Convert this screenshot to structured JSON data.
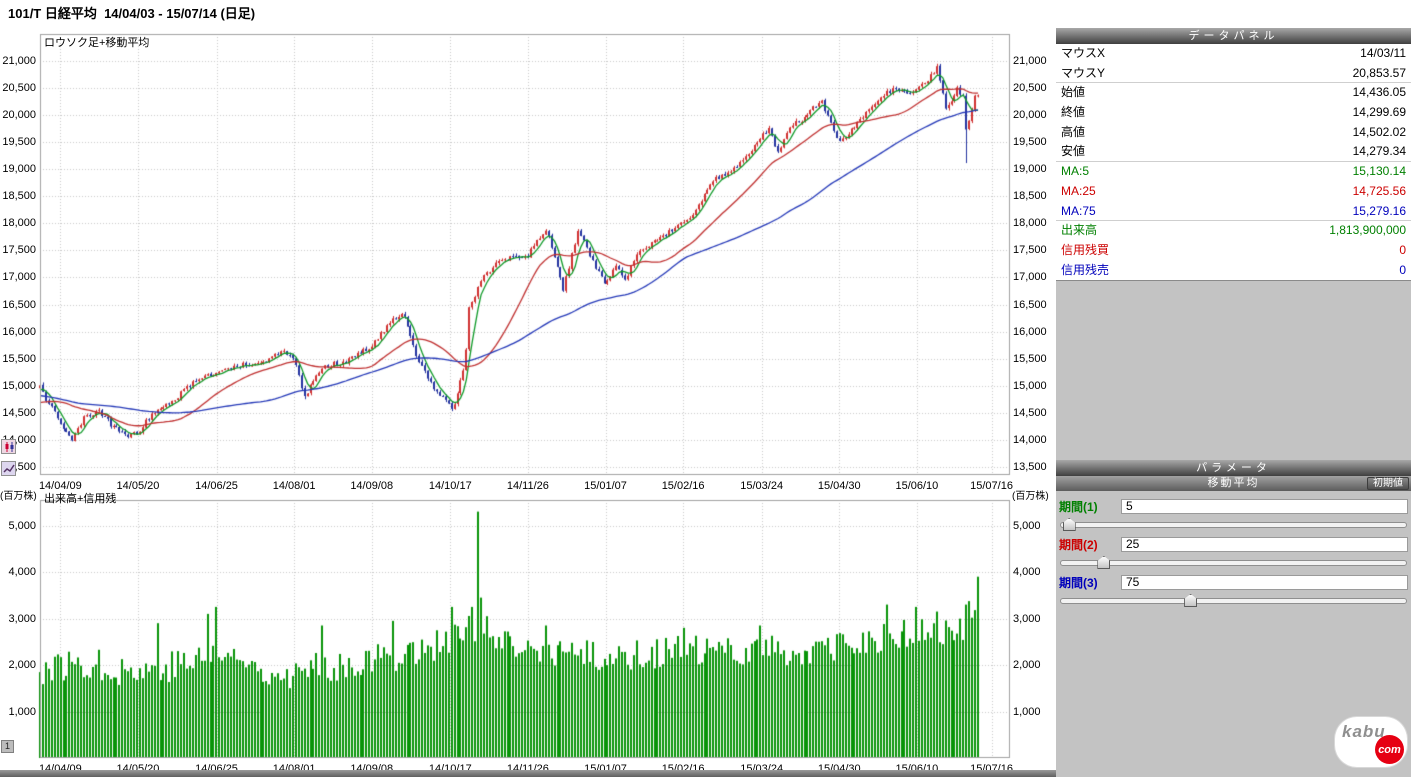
{
  "title": "101/T 日経平均  14/04/03 - 15/07/14 (日足)",
  "page_indicator": "1",
  "chart_labels": {
    "main": "ロウソク足+移動平均",
    "volume": "出来高+信用残",
    "volume_unit": "(百万株)"
  },
  "data_panel": {
    "title": "データパネル",
    "palette": {
      "black": "#000000",
      "green": "#008000",
      "red": "#cc0000",
      "blue": "#0000bb"
    },
    "rows": [
      {
        "label": "マウスX",
        "value": "14/03/11",
        "color": "black"
      },
      {
        "label": "マウスY",
        "value": "20,853.57",
        "color": "black",
        "sep": true
      },
      {
        "label": "始値",
        "value": "14,436.05",
        "color": "black"
      },
      {
        "label": "終値",
        "value": "14,299.69",
        "color": "black"
      },
      {
        "label": "高値",
        "value": "14,502.02",
        "color": "black"
      },
      {
        "label": "安値",
        "value": "14,279.34",
        "color": "black",
        "sep": true
      },
      {
        "label": "MA:5",
        "value": "15,130.14",
        "color": "green"
      },
      {
        "label": "MA:25",
        "value": "14,725.56",
        "color": "red"
      },
      {
        "label": "MA:75",
        "value": "15,279.16",
        "color": "blue",
        "sep": true
      },
      {
        "label": "出来高",
        "value": "1,813,900,000",
        "color": "green"
      },
      {
        "label": "信用残買",
        "value": "0",
        "color": "red"
      },
      {
        "label": "信用残売",
        "value": "0",
        "color": "blue"
      }
    ]
  },
  "parameters": {
    "title": "パラメータ",
    "group_title": "移動平均",
    "reset_button": "初期値",
    "sliders": [
      {
        "label": "期間(1)",
        "value": 5,
        "max": 200,
        "color": "green"
      },
      {
        "label": "期間(2)",
        "value": 25,
        "max": 200,
        "color": "red"
      },
      {
        "label": "期間(3)",
        "value": 75,
        "max": 200,
        "color": "blue"
      }
    ]
  },
  "logo": {
    "kabu": "kabu",
    "com": "com"
  },
  "chart_data": {
    "type": "candlestick",
    "symbol": "101/T",
    "name": "日経平均",
    "range": "14/04/03 - 15/07/14",
    "interval": "日足",
    "title": "ロウソク足+移動平均",
    "volume_title": "出来高+信用残",
    "price_axis": {
      "min": 13350,
      "max": 21500,
      "ticks": [
        21000,
        20500,
        20000,
        19500,
        19000,
        18500,
        18000,
        17500,
        17000,
        16500,
        16000,
        15500,
        15000,
        14500,
        14000,
        13500
      ]
    },
    "volume_axis": {
      "min": 0,
      "max": 5550,
      "ticks": [
        5000,
        4000,
        3000,
        2000,
        1000
      ],
      "unit": "(百万株)"
    },
    "x_ticks": [
      {
        "label": "14/04/09",
        "f": 0.021
      },
      {
        "label": "14/05/20",
        "f": 0.101
      },
      {
        "label": "14/06/25",
        "f": 0.182
      },
      {
        "label": "14/08/01",
        "f": 0.262
      },
      {
        "label": "14/09/08",
        "f": 0.342
      },
      {
        "label": "14/10/17",
        "f": 0.423
      },
      {
        "label": "14/11/26",
        "f": 0.503
      },
      {
        "label": "15/01/07",
        "f": 0.583
      },
      {
        "label": "15/02/16",
        "f": 0.663
      },
      {
        "label": "15/03/24",
        "f": 0.744
      },
      {
        "label": "15/04/30",
        "f": 0.824
      },
      {
        "label": "15/06/10",
        "f": 0.904
      },
      {
        "label": "15/07/16",
        "f": 0.981
      }
    ],
    "days": 320,
    "x_span_frac": 0.967,
    "pre_close_anchors": [
      [
        -80,
        15650
      ],
      [
        -62,
        14920
      ],
      [
        -48,
        14680
      ],
      [
        -34,
        14880
      ],
      [
        -18,
        14480
      ],
      [
        -8,
        14760
      ],
      [
        -1,
        14960
      ]
    ],
    "close_anchors": [
      [
        0,
        15000
      ],
      [
        2,
        14750
      ],
      [
        7,
        14320
      ],
      [
        11,
        13990
      ],
      [
        15,
        14400
      ],
      [
        20,
        14520
      ],
      [
        25,
        14230
      ],
      [
        30,
        14060
      ],
      [
        33,
        14120
      ],
      [
        38,
        14470
      ],
      [
        45,
        14700
      ],
      [
        52,
        15070
      ],
      [
        60,
        15260
      ],
      [
        68,
        15380
      ],
      [
        76,
        15430
      ],
      [
        82,
        15650
      ],
      [
        86,
        15530
      ],
      [
        90,
        14810
      ],
      [
        96,
        15340
      ],
      [
        104,
        15460
      ],
      [
        113,
        15730
      ],
      [
        120,
        16230
      ],
      [
        124,
        16310
      ],
      [
        128,
        15530
      ],
      [
        133,
        15050
      ],
      [
        140,
        14560
      ],
      [
        142,
        14830
      ],
      [
        144,
        15300
      ],
      [
        145,
        15650
      ],
      [
        146,
        16420
      ],
      [
        150,
        16950
      ],
      [
        155,
        17260
      ],
      [
        160,
        17380
      ],
      [
        166,
        17410
      ],
      [
        172,
        17910
      ],
      [
        178,
        16790
      ],
      [
        183,
        17830
      ],
      [
        186,
        17550
      ],
      [
        190,
        17080
      ],
      [
        192,
        16900
      ],
      [
        196,
        17230
      ],
      [
        199,
        16960
      ],
      [
        204,
        17510
      ],
      [
        209,
        17660
      ],
      [
        219,
        18010
      ],
      [
        224,
        18320
      ],
      [
        229,
        18800
      ],
      [
        235,
        18970
      ],
      [
        241,
        19280
      ],
      [
        245,
        19560
      ],
      [
        248,
        19750
      ],
      [
        251,
        19290
      ],
      [
        255,
        19790
      ],
      [
        259,
        19910
      ],
      [
        263,
        20150
      ],
      [
        266,
        20250
      ],
      [
        270,
        19700
      ],
      [
        272,
        19530
      ],
      [
        276,
        19710
      ],
      [
        281,
        20020
      ],
      [
        286,
        20360
      ],
      [
        291,
        20510
      ],
      [
        295,
        20420
      ],
      [
        298,
        20460
      ],
      [
        302,
        20660
      ],
      [
        305,
        20870
      ],
      [
        307,
        20380
      ],
      [
        308,
        20110
      ],
      [
        310,
        20250
      ],
      [
        312,
        20500
      ],
      [
        314,
        20330
      ],
      [
        315,
        19740
      ],
      [
        316,
        19860
      ],
      [
        317,
        20090
      ],
      [
        318,
        20350
      ],
      [
        319,
        20390
      ]
    ],
    "wick_overrides": [
      {
        "i": 305,
        "high": 20950
      },
      {
        "i": 315,
        "low": 19115
      },
      {
        "i": 140,
        "low": 14530
      },
      {
        "i": 90,
        "low": 14750
      }
    ],
    "volume_anchors": [
      [
        0,
        1900
      ],
      [
        15,
        2050
      ],
      [
        33,
        1850
      ],
      [
        50,
        2050
      ],
      [
        60,
        2250
      ],
      [
        75,
        1950
      ],
      [
        86,
        1800
      ],
      [
        100,
        2000
      ],
      [
        113,
        2100
      ],
      [
        130,
        2350
      ],
      [
        140,
        2550
      ],
      [
        146,
        2750
      ],
      [
        149,
        2900
      ],
      [
        155,
        2450
      ],
      [
        166,
        2250
      ],
      [
        178,
        2300
      ],
      [
        192,
        2150
      ],
      [
        205,
        2250
      ],
      [
        219,
        2300
      ],
      [
        232,
        2250
      ],
      [
        245,
        2400
      ],
      [
        258,
        2250
      ],
      [
        272,
        2350
      ],
      [
        285,
        2550
      ],
      [
        298,
        2700
      ],
      [
        308,
        2650
      ],
      [
        315,
        2900
      ],
      [
        319,
        3500
      ]
    ],
    "volume_spikes": [
      {
        "i": 149,
        "v": 5300
      },
      {
        "i": 147,
        "v": 3250
      },
      {
        "i": 150,
        "v": 3450
      },
      {
        "i": 152,
        "v": 3050
      },
      {
        "i": 57,
        "v": 3100
      },
      {
        "i": 60,
        "v": 3250
      },
      {
        "i": 40,
        "v": 2900
      },
      {
        "i": 96,
        "v": 2850
      },
      {
        "i": 120,
        "v": 2950
      },
      {
        "i": 140,
        "v": 3250
      },
      {
        "i": 172,
        "v": 2850
      },
      {
        "i": 219,
        "v": 2800
      },
      {
        "i": 245,
        "v": 2850
      },
      {
        "i": 288,
        "v": 3300
      },
      {
        "i": 298,
        "v": 3250
      },
      {
        "i": 305,
        "v": 3150
      },
      {
        "i": 315,
        "v": 3300
      },
      {
        "i": 319,
        "v": 3900
      }
    ],
    "moving_averages": [
      {
        "name": "MA:5",
        "period": 5,
        "color": "#0f9a28"
      },
      {
        "name": "MA:25",
        "period": 25,
        "color": "#c03030"
      },
      {
        "name": "MA:75",
        "period": 75,
        "color": "#2438b8"
      }
    ],
    "colors": {
      "up": "#d03030",
      "down": "#2433a0",
      "volume": "#089408",
      "grid": "#c8c8c8",
      "frame": "#a0a0a0"
    }
  }
}
